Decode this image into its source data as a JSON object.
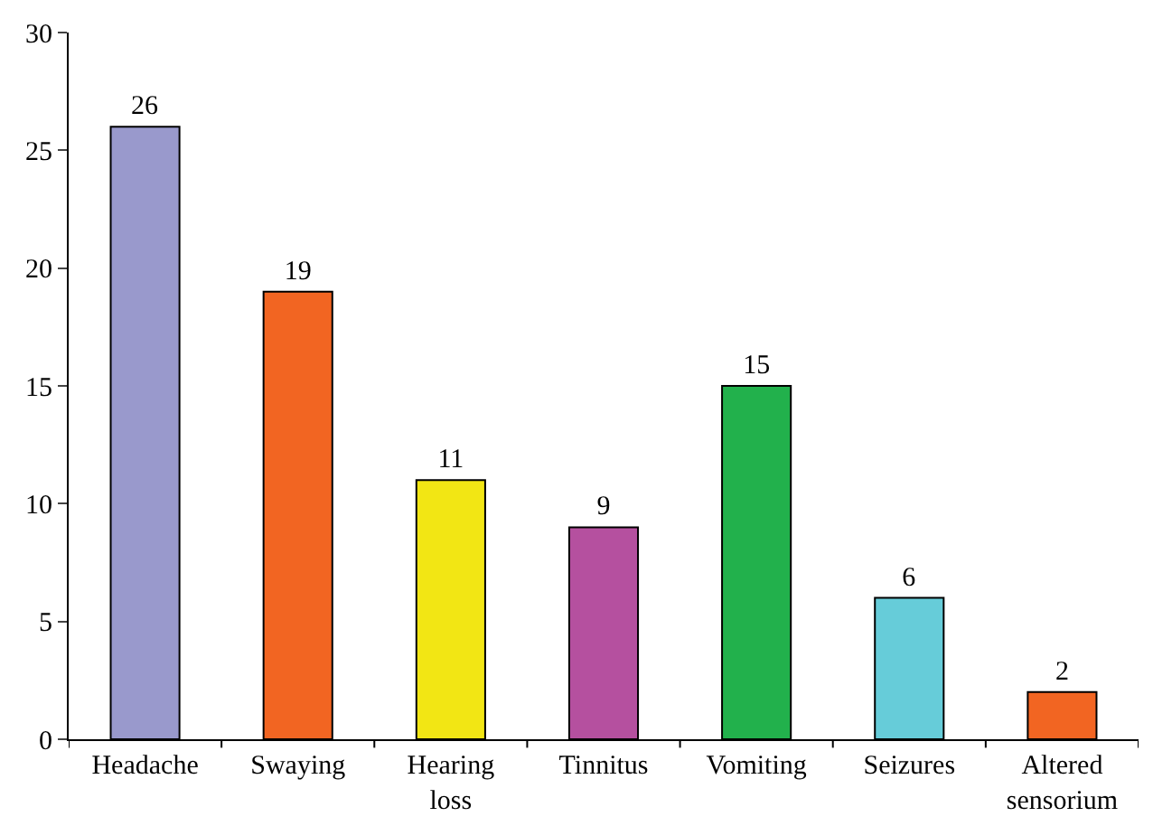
{
  "chart_data": {
    "type": "bar",
    "categories": [
      "Headache",
      "Swaying",
      "Hearing loss",
      "Tinnitus",
      "Vomiting",
      "Seizures",
      "Altered sensorium"
    ],
    "values": [
      26,
      19,
      11,
      9,
      15,
      6,
      2
    ],
    "colors": [
      "#9999cc",
      "#f26522",
      "#f2e614",
      "#b5509f",
      "#22b14c",
      "#66ccd9",
      "#f26522"
    ],
    "ylim": [
      0,
      30
    ],
    "yticks": [
      0,
      5,
      10,
      15,
      20,
      25,
      30
    ],
    "grid": false,
    "data_labels": true
  }
}
